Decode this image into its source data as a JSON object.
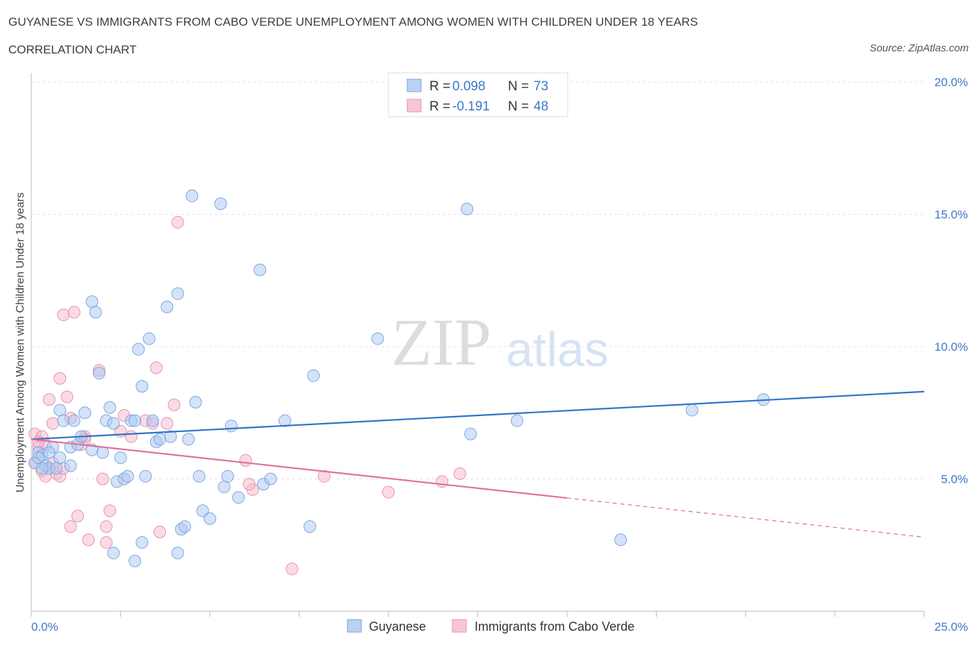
{
  "header": {
    "title": "GUYANESE VS IMMIGRANTS FROM CABO VERDE UNEMPLOYMENT AMONG WOMEN WITH CHILDREN UNDER 18 YEARS",
    "subtitle": "CORRELATION CHART",
    "source": "Source: ZipAtlas.com"
  },
  "watermark": {
    "zip": "ZIP",
    "atlas": "atlas"
  },
  "colors": {
    "blue_fill": "#a9c8f2",
    "blue_stroke": "#7aa6e0",
    "blue_line": "#2f73c8",
    "pink_fill": "#f5b8cb",
    "pink_stroke": "#e891ae",
    "pink_line": "#e0709a",
    "axis_label_color": "#3b78c9"
  },
  "legend": {
    "items": [
      {
        "r_label": "R =",
        "r_value": "0.098",
        "n_label": "N =",
        "n_value": "73"
      },
      {
        "r_label": "R =",
        "r_value": "-0.191",
        "n_label": "N =",
        "n_value": "48"
      }
    ]
  },
  "bottom_legend": [
    "Guyanese",
    "Immigrants from Cabo Verde"
  ],
  "chart_data": {
    "type": "scatter",
    "title": "GUYANESE VS IMMIGRANTS FROM CABO VERDE UNEMPLOYMENT AMONG WOMEN WITH CHILDREN UNDER 18 YEARS",
    "ylabel": "Unemployment Among Women with Children Under 18 years",
    "xlabel": "",
    "xlim": [
      0,
      25
    ],
    "ylim": [
      0,
      20
    ],
    "x_tick_labels": [
      "0.0%",
      "25.0%"
    ],
    "y_tick_labels": [
      "5.0%",
      "10.0%",
      "15.0%",
      "20.0%"
    ],
    "y_ticks": [
      5,
      10,
      15,
      20
    ],
    "grid": true,
    "legend_position": "top-center",
    "series": [
      {
        "name": "Guyanese",
        "R": 0.098,
        "N": 73,
        "trend": {
          "x": [
            0,
            25
          ],
          "y": [
            6.5,
            8.3
          ],
          "dashed_from": null
        },
        "points": [
          [
            0.1,
            5.6
          ],
          [
            0.2,
            6.0
          ],
          [
            0.3,
            5.9
          ],
          [
            0.4,
            5.5
          ],
          [
            0.5,
            5.4
          ],
          [
            0.6,
            6.2
          ],
          [
            0.8,
            5.8
          ],
          [
            0.8,
            7.6
          ],
          [
            0.9,
            7.2
          ],
          [
            1.1,
            5.5
          ],
          [
            1.1,
            6.2
          ],
          [
            1.2,
            7.2
          ],
          [
            1.3,
            6.3
          ],
          [
            1.4,
            6.6
          ],
          [
            1.5,
            7.5
          ],
          [
            1.7,
            11.7
          ],
          [
            1.8,
            11.3
          ],
          [
            1.9,
            9.0
          ],
          [
            2.0,
            6.0
          ],
          [
            2.1,
            7.2
          ],
          [
            2.2,
            7.7
          ],
          [
            2.3,
            7.1
          ],
          [
            2.3,
            2.2
          ],
          [
            2.4,
            4.9
          ],
          [
            2.5,
            5.8
          ],
          [
            2.6,
            5.0
          ],
          [
            2.7,
            5.1
          ],
          [
            2.8,
            7.2
          ],
          [
            2.9,
            1.9
          ],
          [
            2.9,
            7.2
          ],
          [
            3.0,
            9.9
          ],
          [
            3.1,
            8.5
          ],
          [
            3.1,
            2.6
          ],
          [
            3.2,
            5.1
          ],
          [
            3.3,
            10.3
          ],
          [
            3.4,
            7.2
          ],
          [
            3.5,
            6.4
          ],
          [
            3.6,
            6.5
          ],
          [
            3.8,
            11.5
          ],
          [
            3.9,
            6.6
          ],
          [
            4.1,
            12.0
          ],
          [
            4.2,
            3.1
          ],
          [
            4.3,
            3.2
          ],
          [
            4.4,
            6.5
          ],
          [
            4.5,
            15.7
          ],
          [
            4.6,
            7.9
          ],
          [
            4.7,
            5.1
          ],
          [
            4.8,
            3.8
          ],
          [
            5.0,
            3.5
          ],
          [
            5.3,
            15.4
          ],
          [
            5.4,
            4.7
          ],
          [
            5.5,
            5.1
          ],
          [
            5.6,
            7.0
          ],
          [
            5.8,
            4.3
          ],
          [
            6.4,
            12.9
          ],
          [
            6.5,
            4.8
          ],
          [
            6.7,
            5.0
          ],
          [
            7.1,
            7.2
          ],
          [
            7.8,
            3.2
          ],
          [
            7.9,
            8.9
          ],
          [
            9.7,
            10.3
          ],
          [
            12.2,
            15.2
          ],
          [
            12.3,
            6.7
          ],
          [
            13.6,
            7.2
          ],
          [
            16.5,
            2.7
          ],
          [
            18.5,
            7.6
          ],
          [
            20.5,
            8.0
          ],
          [
            0.3,
            5.4
          ],
          [
            0.7,
            5.4
          ],
          [
            1.7,
            6.1
          ],
          [
            0.2,
            5.8
          ],
          [
            4.1,
            2.2
          ],
          [
            0.5,
            6.0
          ]
        ]
      },
      {
        "name": "Immigrants from Cabo Verde",
        "R": -0.191,
        "N": 48,
        "trend": {
          "x": [
            0,
            25
          ],
          "y": [
            6.5,
            2.8
          ],
          "dashed_from": 15
        },
        "points": [
          [
            0.1,
            6.7
          ],
          [
            0.1,
            5.6
          ],
          [
            0.2,
            6.2
          ],
          [
            0.3,
            5.3
          ],
          [
            0.3,
            6.6
          ],
          [
            0.4,
            6.3
          ],
          [
            0.5,
            8.0
          ],
          [
            0.6,
            7.1
          ],
          [
            0.6,
            5.6
          ],
          [
            0.7,
            5.2
          ],
          [
            0.8,
            8.8
          ],
          [
            0.8,
            5.1
          ],
          [
            0.9,
            11.2
          ],
          [
            1.0,
            8.1
          ],
          [
            1.1,
            7.3
          ],
          [
            1.1,
            3.2
          ],
          [
            1.2,
            11.3
          ],
          [
            1.3,
            3.6
          ],
          [
            1.4,
            6.3
          ],
          [
            1.5,
            6.6
          ],
          [
            1.6,
            2.7
          ],
          [
            1.9,
            9.1
          ],
          [
            2.0,
            5.0
          ],
          [
            2.1,
            2.6
          ],
          [
            2.1,
            3.2
          ],
          [
            2.2,
            3.8
          ],
          [
            2.5,
            6.8
          ],
          [
            2.6,
            7.4
          ],
          [
            2.8,
            6.6
          ],
          [
            3.2,
            7.2
          ],
          [
            3.4,
            7.1
          ],
          [
            3.5,
            9.2
          ],
          [
            3.6,
            3.0
          ],
          [
            3.8,
            7.1
          ],
          [
            4.0,
            7.8
          ],
          [
            4.1,
            14.7
          ],
          [
            6.0,
            5.7
          ],
          [
            6.2,
            4.6
          ],
          [
            7.3,
            1.6
          ],
          [
            8.2,
            5.1
          ],
          [
            10.0,
            4.5
          ],
          [
            11.5,
            4.9
          ],
          [
            12.0,
            5.2
          ],
          [
            0.2,
            6.4
          ],
          [
            0.4,
            5.1
          ],
          [
            0.9,
            5.4
          ],
          [
            1.5,
            6.5
          ],
          [
            6.1,
            4.8
          ]
        ]
      }
    ]
  }
}
